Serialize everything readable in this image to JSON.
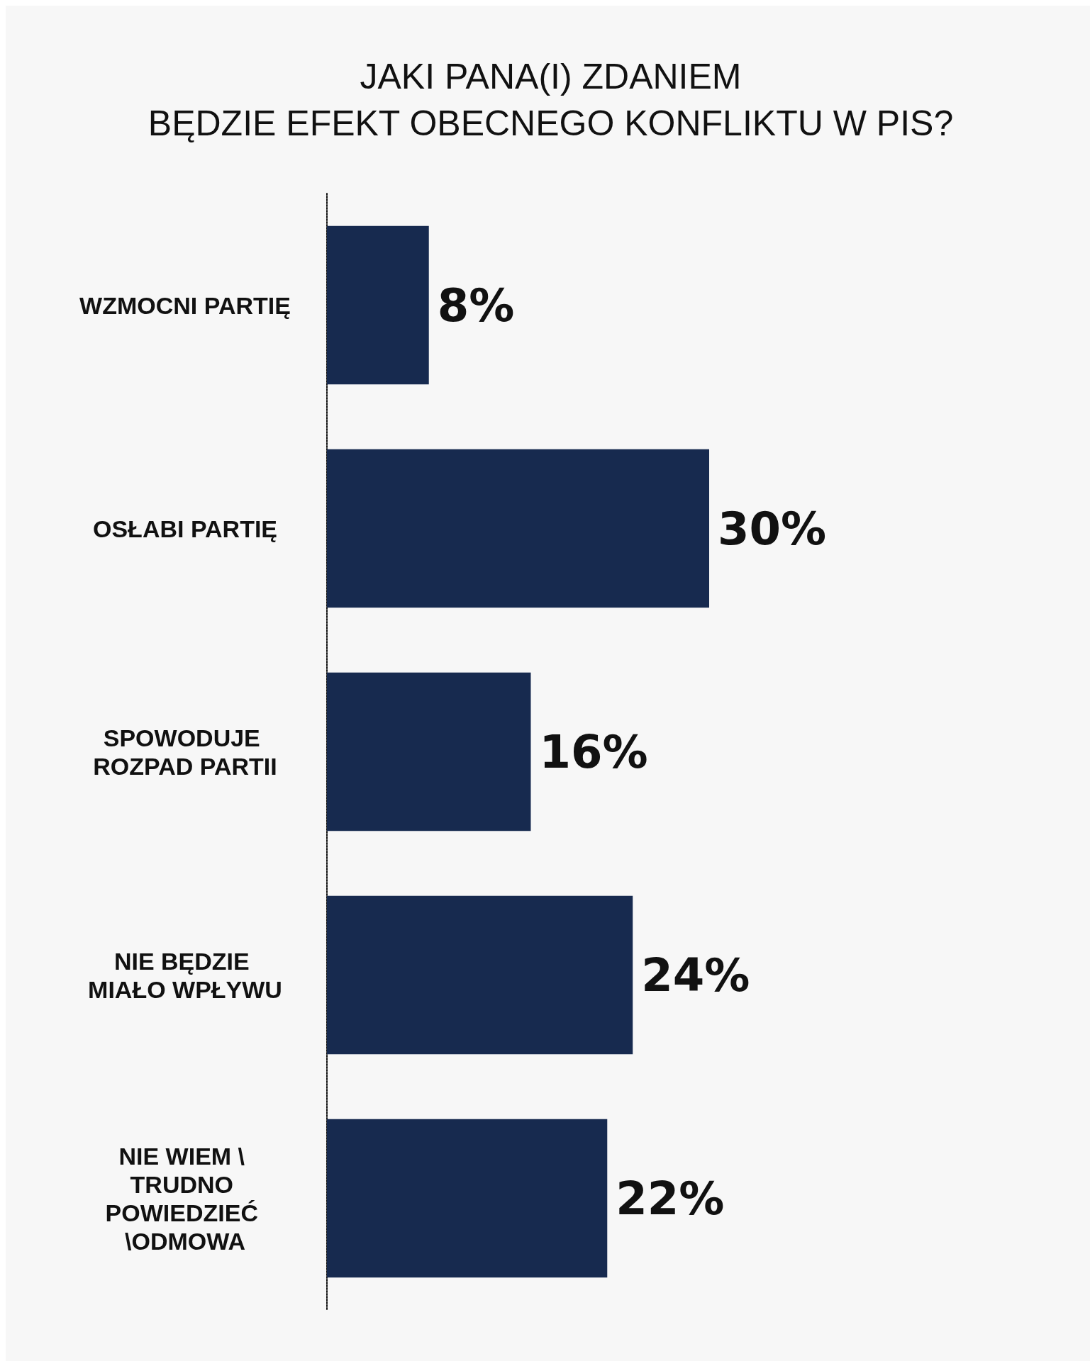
{
  "chart_data": {
    "type": "bar",
    "orientation": "horizontal",
    "title": "JAKI PANA(I) ZDANIEM\nBĘDZIE EFEKT OBECNEGO KONFLIKTU W PIS?",
    "categories": [
      "WZMOCNI PARTIĘ",
      "OSŁABI PARTIĘ",
      "SPOWODUJE ROZPAD PARTII",
      "NIE BĘDZIE MIAŁO WPŁYWU",
      "NIE WIEM \\ TRUDNO POWIEDZIEĆ \\ODMOWA"
    ],
    "values": [
      8,
      30,
      16,
      24,
      22
    ],
    "color": "#172a4f",
    "value_labels": [
      "8%",
      "30%",
      "16%",
      "24%",
      "22%"
    ],
    "line_style": "dotted"
  }
}
